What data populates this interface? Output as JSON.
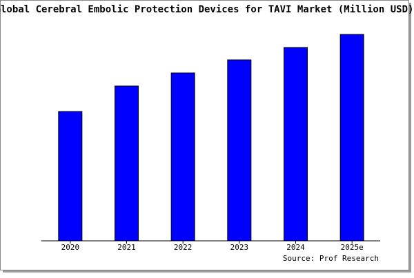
{
  "chart_data": {
    "type": "bar",
    "title": "Global Cerebral Embolic Protection Devices for TAVI Market (Million USD)",
    "categories": [
      "2020",
      "2021",
      "2022",
      "2023",
      "2024",
      "2025e"
    ],
    "values": [
      188,
      225,
      244,
      263,
      281,
      300
    ],
    "color": "#0000ff",
    "source": "Source: Prof Research"
  }
}
